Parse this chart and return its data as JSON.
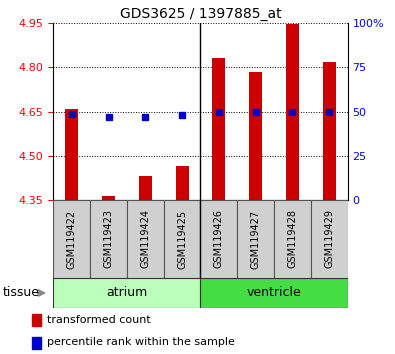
{
  "title": "GDS3625 / 1397885_at",
  "samples": [
    "GSM119422",
    "GSM119423",
    "GSM119424",
    "GSM119425",
    "GSM119426",
    "GSM119427",
    "GSM119428",
    "GSM119429"
  ],
  "bar_values": [
    4.66,
    4.363,
    4.43,
    4.465,
    4.83,
    4.785,
    4.948,
    4.817
  ],
  "bar_bottom": 4.35,
  "blue_values": [
    4.643,
    4.633,
    4.633,
    4.637,
    4.648,
    4.648,
    4.648,
    4.648
  ],
  "ylim_left": [
    4.35,
    4.95
  ],
  "ylim_right": [
    0,
    100
  ],
  "yticks_left": [
    4.35,
    4.5,
    4.65,
    4.8,
    4.95
  ],
  "yticks_right": [
    0,
    25,
    50,
    75,
    100
  ],
  "ytick_labels_right": [
    "0",
    "25",
    "50",
    "75",
    "100%"
  ],
  "bar_color": "#cc0000",
  "blue_color": "#0000cc",
  "atrium_color": "#bbffbb",
  "ventricle_color": "#44dd44",
  "separator_idx": 3.5,
  "legend_bar_label": "transformed count",
  "legend_blue_label": "percentile rank within the sample",
  "tissue_label": "tissue",
  "n_atrium": 4,
  "n_ventricle": 4
}
